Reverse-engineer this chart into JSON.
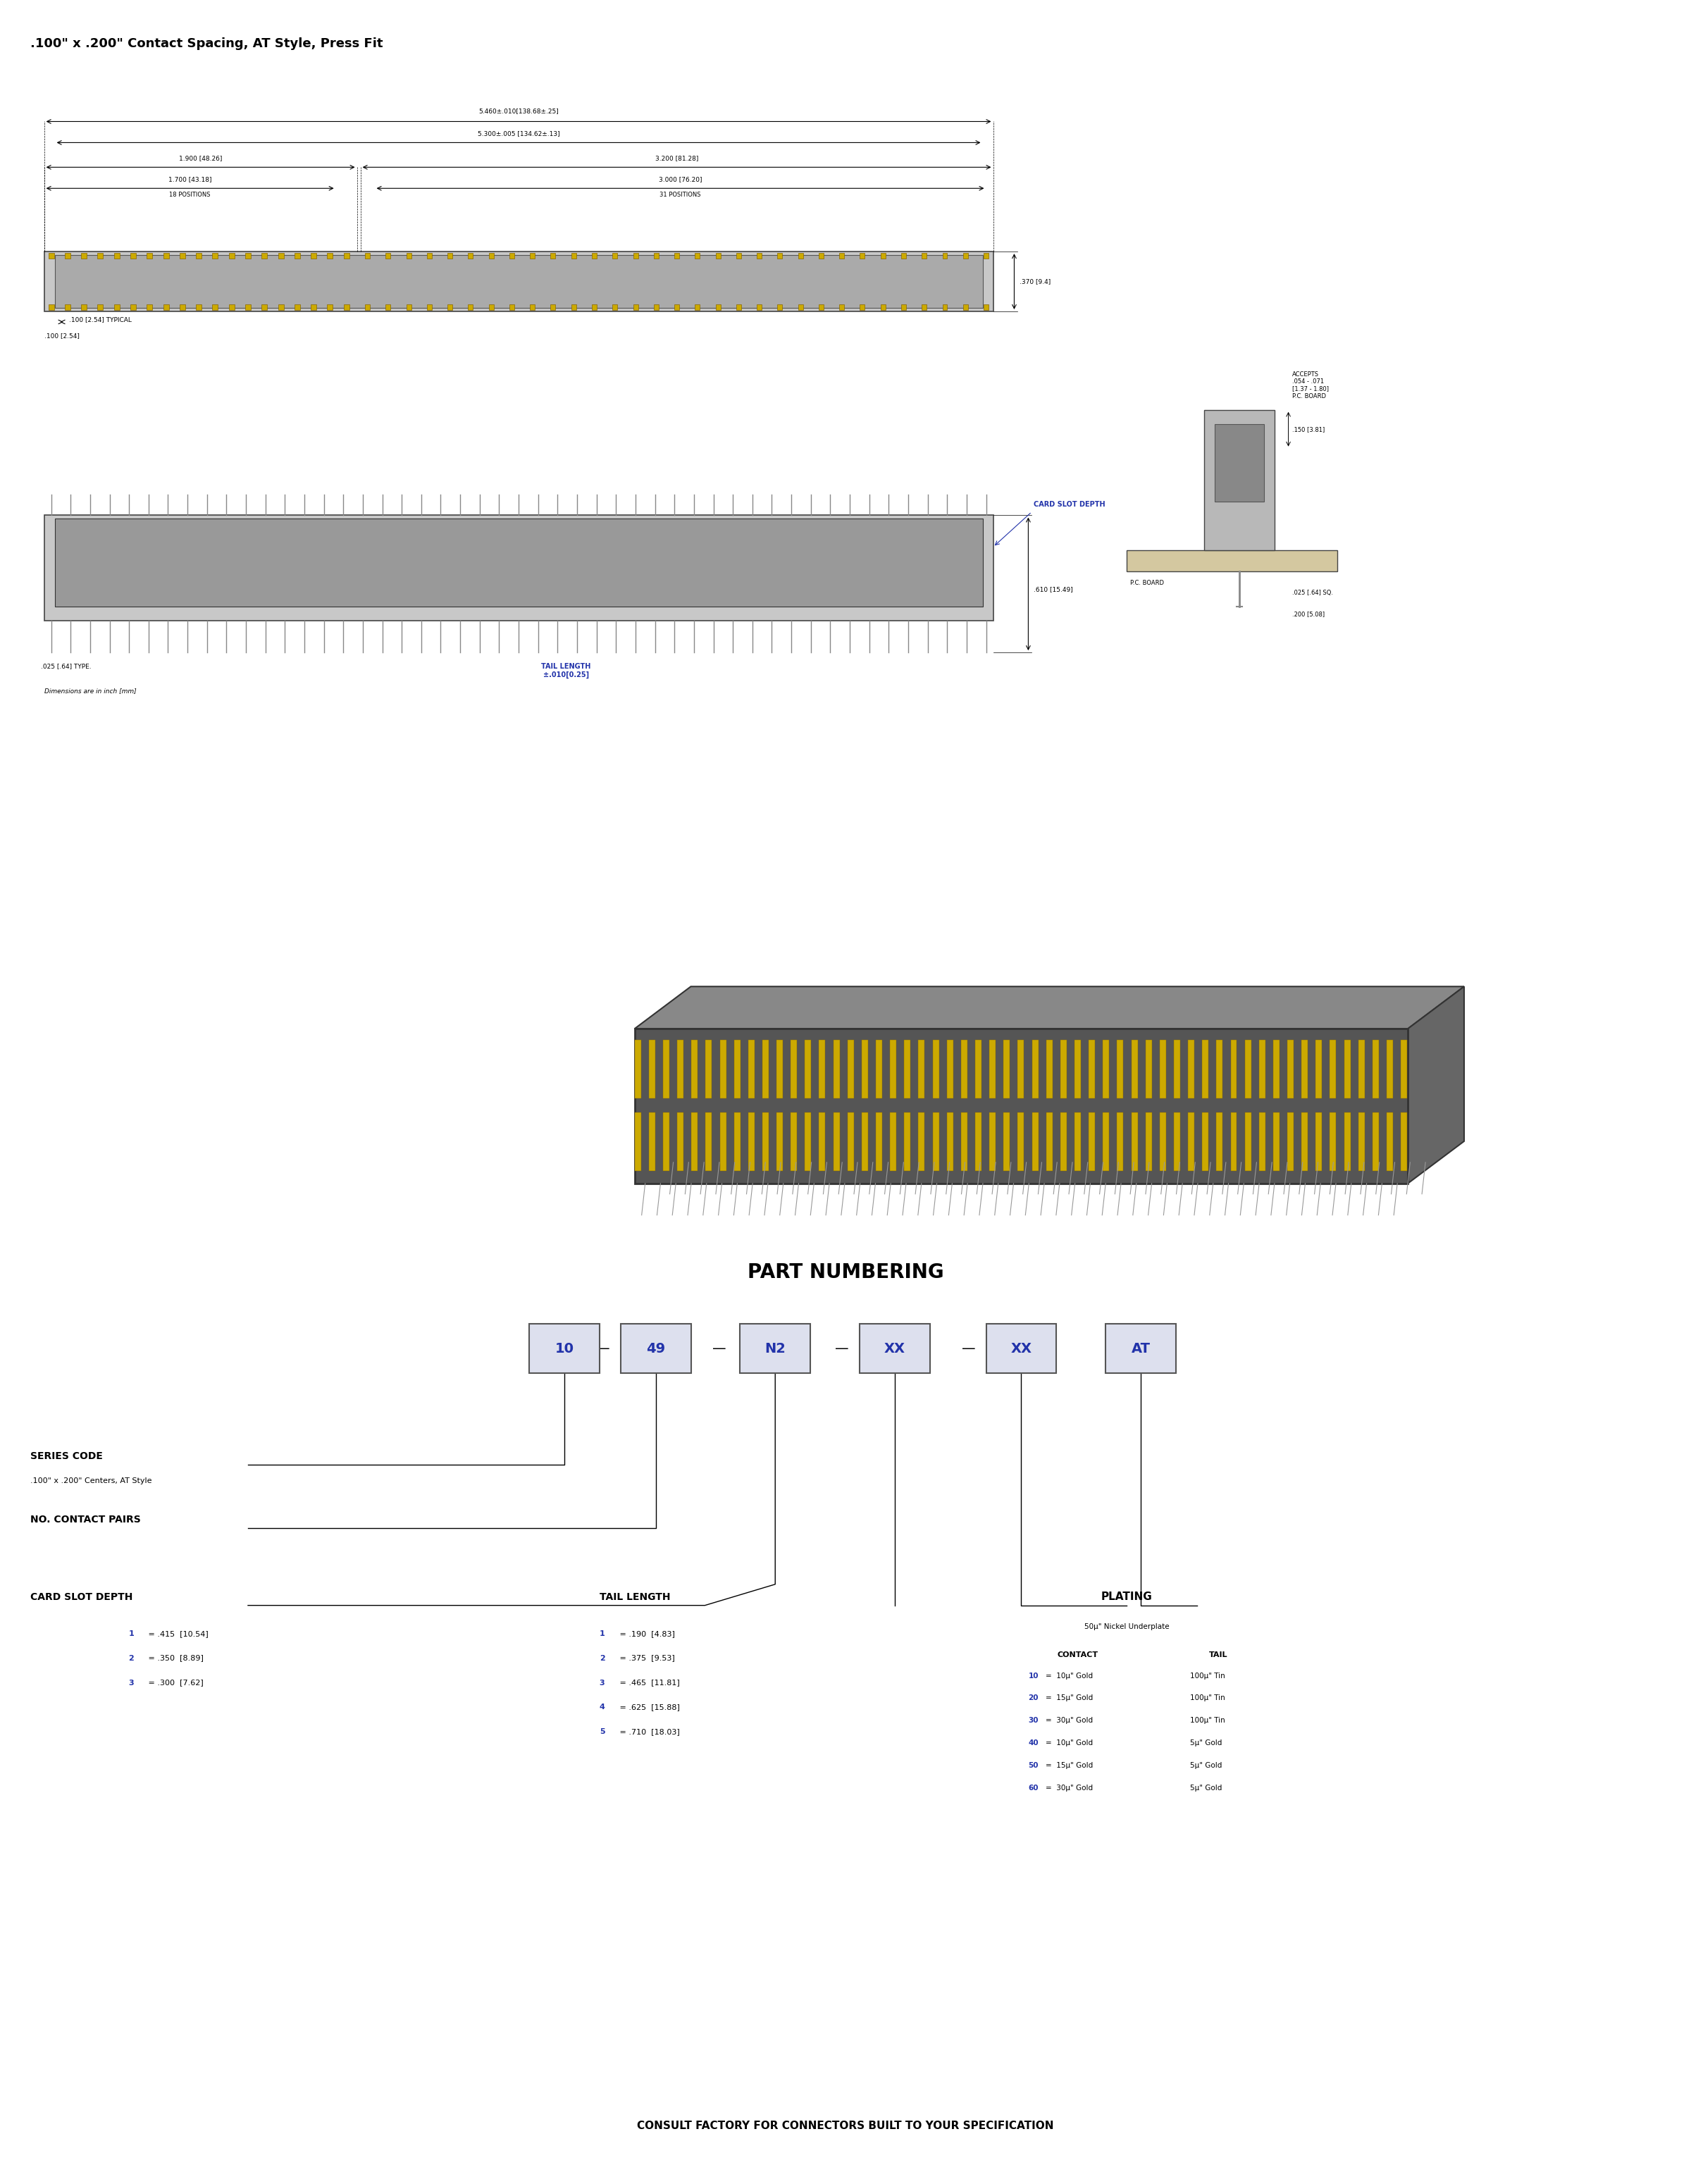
{
  "title": ".100\" x .200\" Contact Spacing, AT Style, Press Fit",
  "title_fontsize": 13,
  "bg_color": "#ffffff",
  "text_color": "#000000",
  "blue_color": "#2233aa",
  "dim_color": "#000000",
  "connector_color": "#888888",
  "connector_edge": "#444444",
  "contact_color": "#ccaa00",
  "part_numbering": {
    "title": "PART NUMBERING",
    "boxes": [
      "10",
      "49",
      "N2",
      "XX",
      "XX",
      "AT"
    ],
    "separator": [
      "",
      "-",
      "",
      "-",
      "-",
      ""
    ],
    "labels_below": [
      "SERIES CODE\n.100\" x .200\" Centers, AT Style",
      "NO. CONTACT PAIRS",
      "",
      "CARD SLOT DEPTH",
      "TAIL LENGTH",
      "PLATING"
    ]
  },
  "dimensions_top": {
    "dim1": "5.460±.010[138.68±.25]",
    "dim2": "5.300±.005 [134.62±.13]",
    "dim3": "1.900 [48.26]",
    "dim4": "1.700 [43.18]",
    "dim4b": "18 POSITIONS",
    "dim5": "3.200 [81.28]",
    "dim6": "3.000 [76.20]",
    "dim6b": "31 POSITIONS",
    "dim7": ".370 [9.4]",
    "dim8": ".100 [2.54] TYPICAL",
    "dim9": ".100 [2.54]"
  },
  "dimensions_side": {
    "dim1": ".610 [15.49]",
    "dim2": ".025 [.64] TYPE.",
    "dim3": "TAIL LENGTH\n±.010[0.25]",
    "dim4": "CARD SLOT DEPTH",
    "dim5": "ACCEPTS\n.054 - .071\n[1.37 - 1.80]\nP.C. BOARD",
    "dim6": ".150 [3.81]",
    "dim7": ".025 [.64] SQ.",
    "dim8": ".200 [5.08]"
  },
  "card_slot_depth_values": [
    "1 = .415  [10.54]",
    "2 = .350  [8.89]",
    "3 = .300  [7.62]"
  ],
  "tail_length_values": [
    "1 = .190  [4.83]",
    "2 = .375  [9.53]",
    "3 = .465  [11.81]",
    "4 = .625  [15.88]",
    "5 = .710  [18.03]"
  ],
  "plating_title": "PLATING",
  "plating_subtitle": "50μ\" Nickel Underplate",
  "plating_contact_header": "CONTACT",
  "plating_tail_header": "TAIL",
  "plating_rows": [
    [
      "10 = 10μ\" Gold",
      "100μ\" Tin"
    ],
    [
      "20 = 15μ\" Gold",
      "100μ\" Tin"
    ],
    [
      "30 = 30μ\" Gold",
      "100μ\" Tin"
    ],
    [
      "40 = 10μ\" Gold",
      "5μ\" Gold"
    ],
    [
      "50 = 15μ\" Gold",
      "5μ\" Gold"
    ],
    [
      "60 = 30μ\" Gold",
      "5μ\" Gold"
    ]
  ],
  "footer": "CONSULT FACTORY FOR CONNECTORS BUILT TO YOUR SPECIFICATION",
  "note": "Dimensions are in inch [mm]"
}
